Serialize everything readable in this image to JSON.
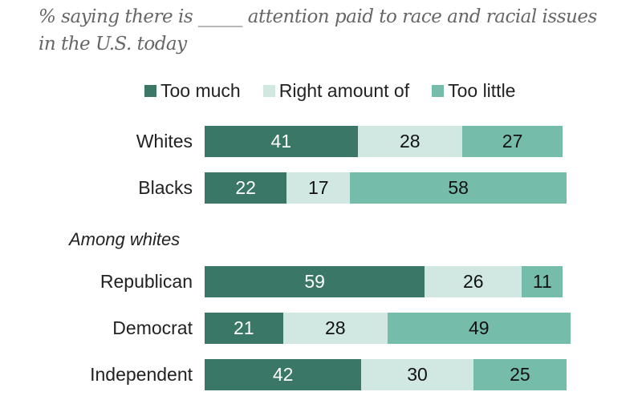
{
  "chart_data": {
    "type": "bar",
    "orientation": "horizontal",
    "stacked": true,
    "title": "% saying there is _____ attention paid to race and racial issues in the U.S. today",
    "legend": {
      "placement": "top",
      "entries": [
        "Too much",
        "Right amount of",
        "Too little"
      ]
    },
    "section_labels": [
      "Among whites"
    ],
    "categories": [
      "Whites",
      "Blacks",
      "Republican",
      "Democrat",
      "Independent"
    ],
    "category_sections": [
      "",
      "",
      "Among whites",
      "Among whites",
      "Among whites"
    ],
    "series": [
      {
        "name": "Too much",
        "color": "#3a7767",
        "label_color": "#ffffff",
        "values": [
          41,
          22,
          59,
          21,
          42
        ]
      },
      {
        "name": "Right amount of",
        "color": "#d1e8e2",
        "label_color": "#111111",
        "values": [
          28,
          17,
          26,
          28,
          30
        ]
      },
      {
        "name": "Too little",
        "color": "#75bcaa",
        "label_color": "#111111",
        "values": [
          27,
          58,
          11,
          49,
          25
        ]
      }
    ],
    "xlim": [
      0,
      100
    ],
    "grid": false,
    "xlabel": "",
    "ylabel": ""
  }
}
